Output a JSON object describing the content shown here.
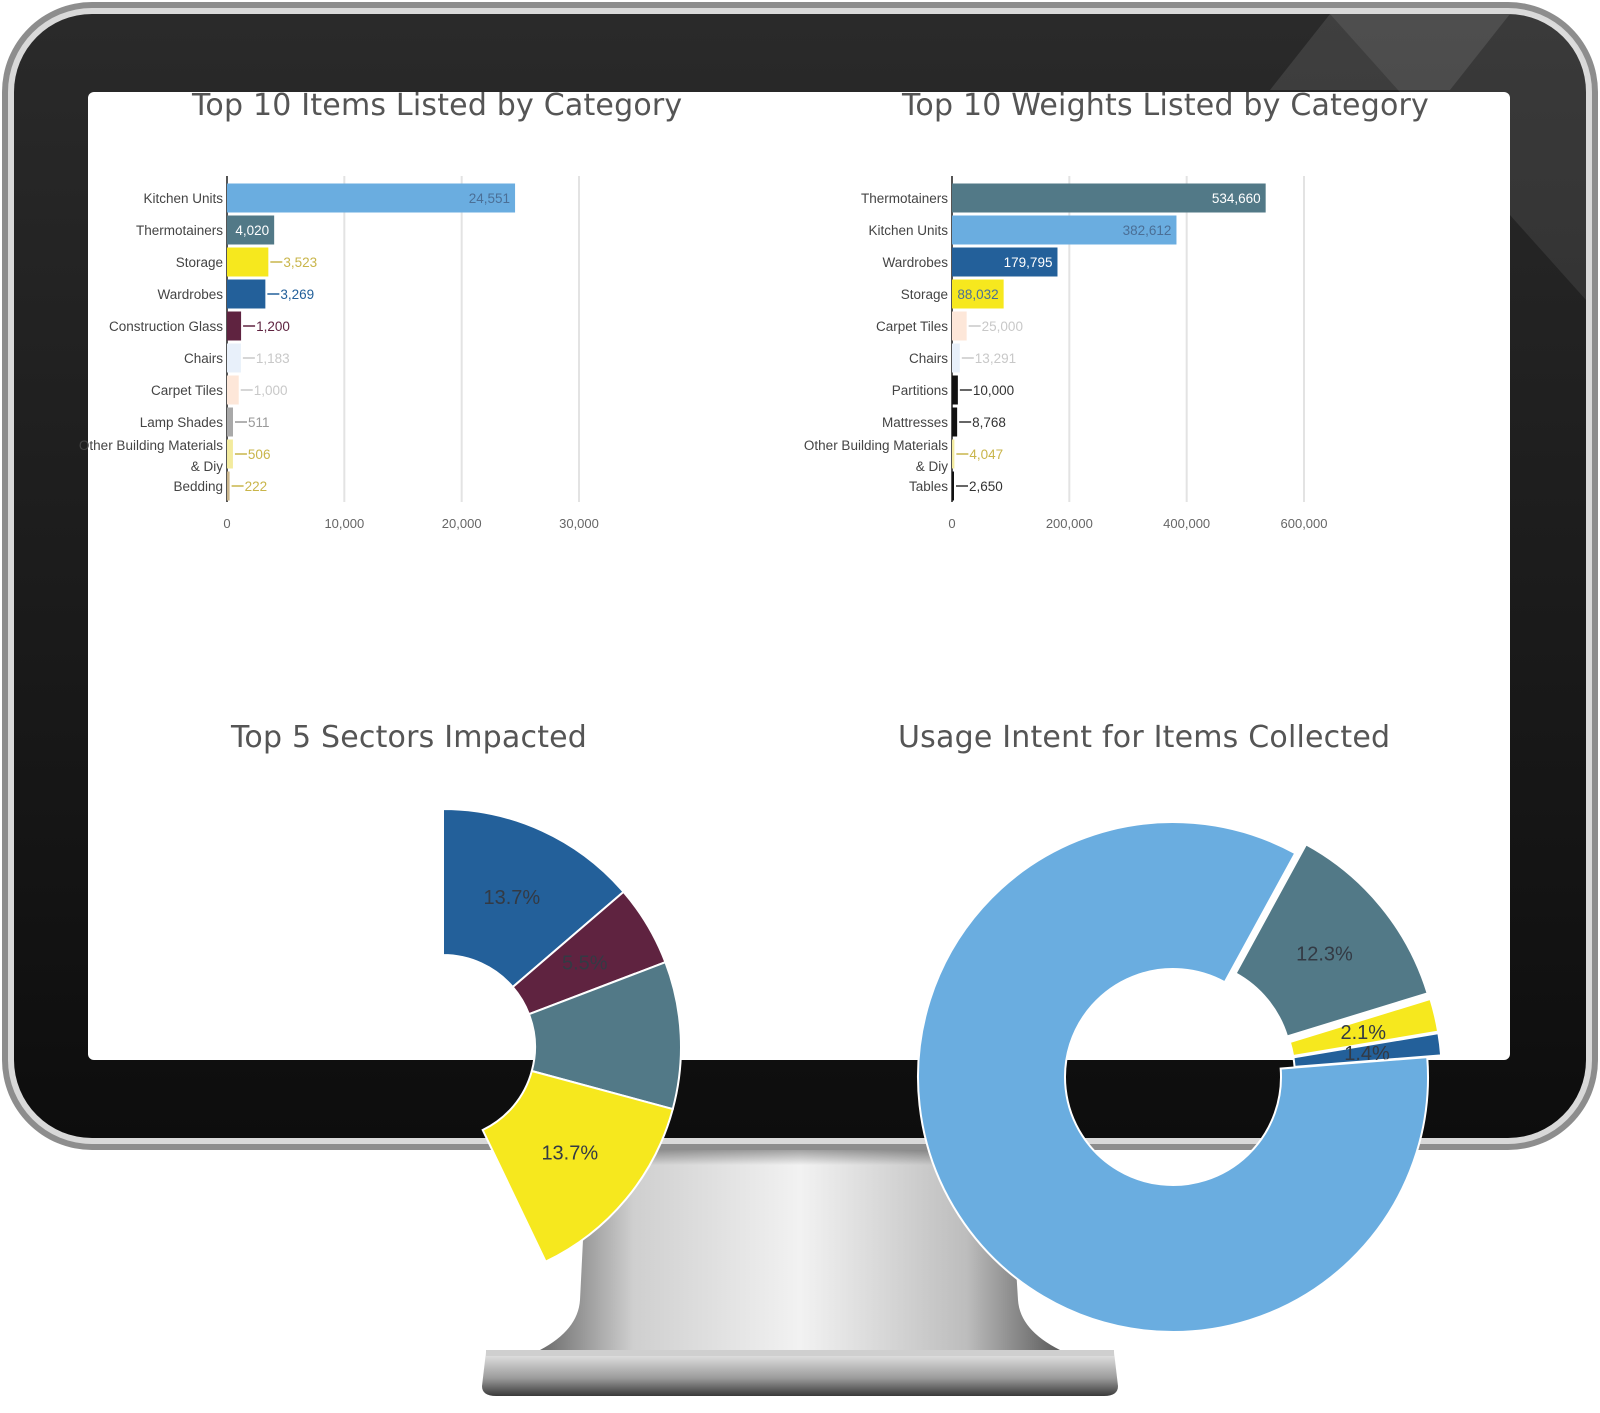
{
  "colors": {
    "light_blue": "#6aade0",
    "teal_grey": "#527987",
    "yellow": "#f6e81e",
    "dark_blue": "#23609a",
    "plum": "#5f2340",
    "pale_blue": "#e8f0fa",
    "pale_peach": "#fde7d9",
    "grey": "#a9a9a9",
    "pale_yellow": "#f3eb9e",
    "light_tan": "#c9b48a",
    "black": "#111111"
  },
  "chart_data": [
    {
      "type": "bar",
      "orientation": "horizontal",
      "title": "Top 10 Items Listed by Category",
      "categories": [
        "Kitchen Units",
        "Thermotainers",
        "Storage",
        "Wardrobes",
        "Construction Glass",
        "Chairs",
        "Carpet Tiles",
        "Lamp Shades",
        "Other Building Materials & Diy",
        "Bedding"
      ],
      "category_lines": [
        [
          "Kitchen Units"
        ],
        [
          "Thermotainers"
        ],
        [
          "Storage"
        ],
        [
          "Wardrobes"
        ],
        [
          "Construction Glass"
        ],
        [
          "Chairs"
        ],
        [
          "Carpet Tiles"
        ],
        [
          "Lamp Shades"
        ],
        [
          "Other Building Materials",
          "& Diy"
        ],
        [
          "Bedding"
        ]
      ],
      "values": [
        24551,
        4020,
        3523,
        3269,
        1200,
        1183,
        1000,
        511,
        506,
        222
      ],
      "value_labels": [
        "24,551",
        "4,020",
        "3,523",
        "3,269",
        "1,200",
        "1,183",
        "1,000",
        "511",
        "506",
        "222"
      ],
      "bar_colors": [
        "light_blue",
        "teal_grey",
        "yellow",
        "dark_blue",
        "plum",
        "pale_blue",
        "pale_peach",
        "grey",
        "pale_yellow",
        "light_tan"
      ],
      "xlim": [
        0,
        30000
      ],
      "xticks": [
        0,
        10000,
        20000,
        30000
      ],
      "xtick_labels": [
        "0",
        "10,000",
        "20,000",
        "30,000"
      ],
      "grid": true
    },
    {
      "type": "bar",
      "orientation": "horizontal",
      "title": "Top 10 Weights Listed by Category",
      "categories": [
        "Thermotainers",
        "Kitchen Units",
        "Wardrobes",
        "Storage",
        "Carpet Tiles",
        "Chairs",
        "Partitions",
        "Mattresses",
        "Other Building Materials & Diy",
        "Tables"
      ],
      "category_lines": [
        [
          "Thermotainers"
        ],
        [
          "Kitchen Units"
        ],
        [
          "Wardrobes"
        ],
        [
          "Storage"
        ],
        [
          "Carpet Tiles"
        ],
        [
          "Chairs"
        ],
        [
          "Partitions"
        ],
        [
          "Mattresses"
        ],
        [
          "Other Building Materials",
          "& Diy"
        ],
        [
          "Tables"
        ]
      ],
      "values": [
        534660,
        382612,
        179795,
        88032,
        25000,
        13291,
        10000,
        8768,
        4047,
        2650
      ],
      "value_labels": [
        "534,660",
        "382,612",
        "179,795",
        "88,032",
        "25,000",
        "13,291",
        "10,000",
        "8,768",
        "4,047",
        "2,650"
      ],
      "bar_colors": [
        "teal_grey",
        "light_blue",
        "dark_blue",
        "yellow",
        "pale_peach",
        "pale_blue",
        "black",
        "black",
        "pale_yellow",
        "black"
      ],
      "xlim": [
        0,
        600000
      ],
      "xticks": [
        0,
        200000,
        400000,
        600000
      ],
      "xtick_labels": [
        "0",
        "200,000",
        "400,000",
        "600,000"
      ],
      "grid": true
    },
    {
      "type": "pie",
      "style": "donut",
      "title": "Top 5 Sectors Impacted",
      "labels": [
        "13.7%",
        "13.7%",
        "5.5%"
      ],
      "slices": [
        {
          "label": "13.7%",
          "percent": 13.7,
          "color": "dark_blue"
        },
        {
          "label": "5.5%",
          "percent": 5.5,
          "color": "plum"
        },
        {
          "label": "",
          "percent": 10.0,
          "color": "teal_grey"
        },
        {
          "label": "13.7%",
          "percent": 13.7,
          "color": "yellow"
        }
      ]
    },
    {
      "type": "pie",
      "style": "donut",
      "title": "Usage Intent for Items Collected",
      "labels": [
        "12.3%",
        "2.1%",
        "1.4%"
      ],
      "slices": [
        {
          "label": "12.3%",
          "percent": 12.3,
          "color": "teal_grey",
          "exploded": true
        },
        {
          "label": "2.1%",
          "percent": 2.1,
          "color": "yellow",
          "exploded": true
        },
        {
          "label": "1.4%",
          "percent": 1.4,
          "color": "dark_blue",
          "exploded": true
        },
        {
          "label": "",
          "percent": 84.2,
          "color": "light_blue"
        }
      ]
    }
  ]
}
